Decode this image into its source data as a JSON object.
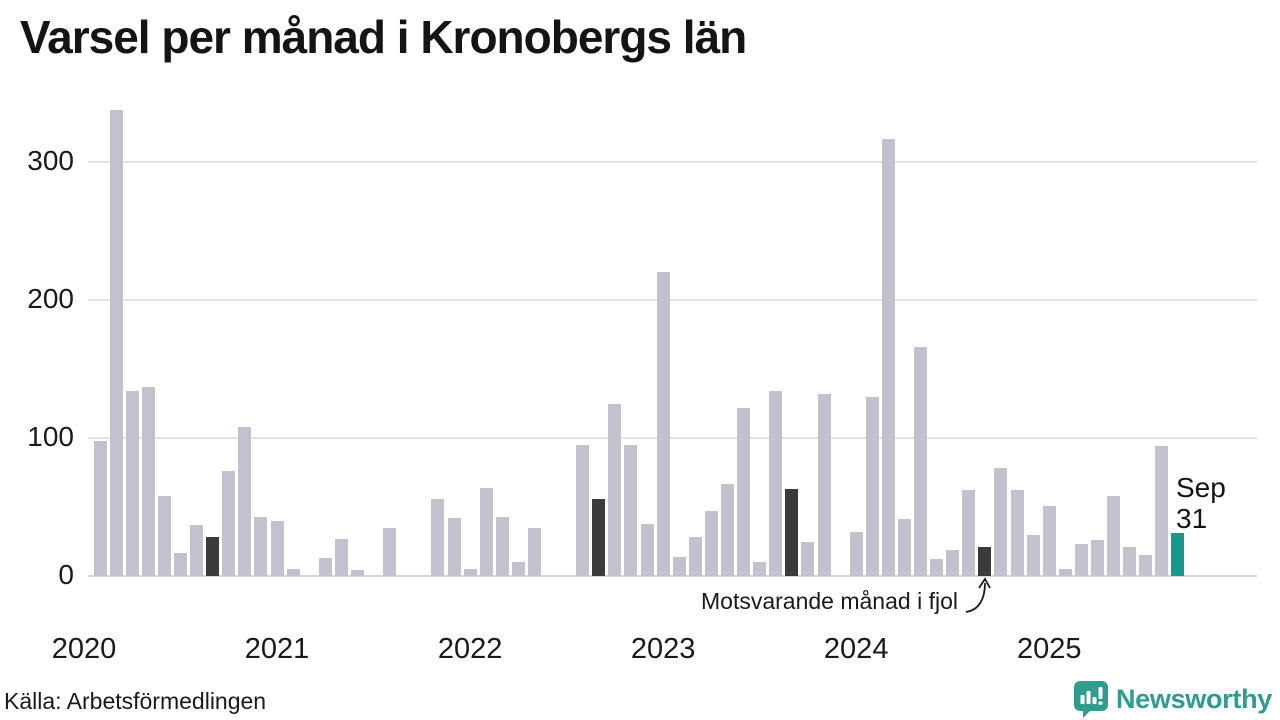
{
  "title": "Varsel per månad i Kronobergs län",
  "source": "Källa: Arbetsförmedlingen",
  "brand": {
    "name": "Newsworthy",
    "color": "#2f9c8e",
    "icon": "newsworthy-speech-bubble-barchart-icon"
  },
  "annotation": {
    "lastyear_label": "Motsvarande månad i fjol",
    "current_month": "Sep",
    "current_value": "31"
  },
  "colors": {
    "bar_normal": "#c3c1ce",
    "bar_lastyear": "#3b3b3b",
    "bar_current": "#18998b",
    "gridline": "#e4e4e6",
    "axis_line": "#d7d7da",
    "text": "#1a1a1a"
  },
  "chart_data": {
    "type": "bar",
    "title": "Varsel per månad i Kronobergs län",
    "xlabel": "",
    "ylabel": "",
    "start_month": "2020-01",
    "end_month": "2025-09",
    "x_years": [
      2020,
      2021,
      2022,
      2023,
      2024,
      2025
    ],
    "yticks": [
      0,
      100,
      200,
      300
    ],
    "ylim": [
      0,
      345
    ],
    "grid": true,
    "legend_position": "none",
    "series": [
      {
        "name": "Varsel per månad",
        "values": [
          0,
          98,
          338,
          134,
          137,
          58,
          17,
          37,
          28,
          76,
          108,
          43,
          40,
          5,
          0,
          13,
          27,
          4,
          0,
          35,
          0,
          0,
          56,
          42,
          5,
          64,
          43,
          10,
          35,
          0,
          0,
          95,
          56,
          125,
          95,
          38,
          220,
          14,
          28,
          47,
          67,
          122,
          10,
          134,
          63,
          25,
          132,
          0,
          32,
          130,
          317,
          41,
          166,
          12,
          19,
          62,
          21,
          78,
          62,
          30,
          51,
          5,
          23,
          26,
          58,
          21,
          15,
          94,
          31
        ]
      }
    ],
    "lastyear_indices": [
      8,
      20,
      32,
      44,
      56
    ],
    "current_index": 68
  }
}
